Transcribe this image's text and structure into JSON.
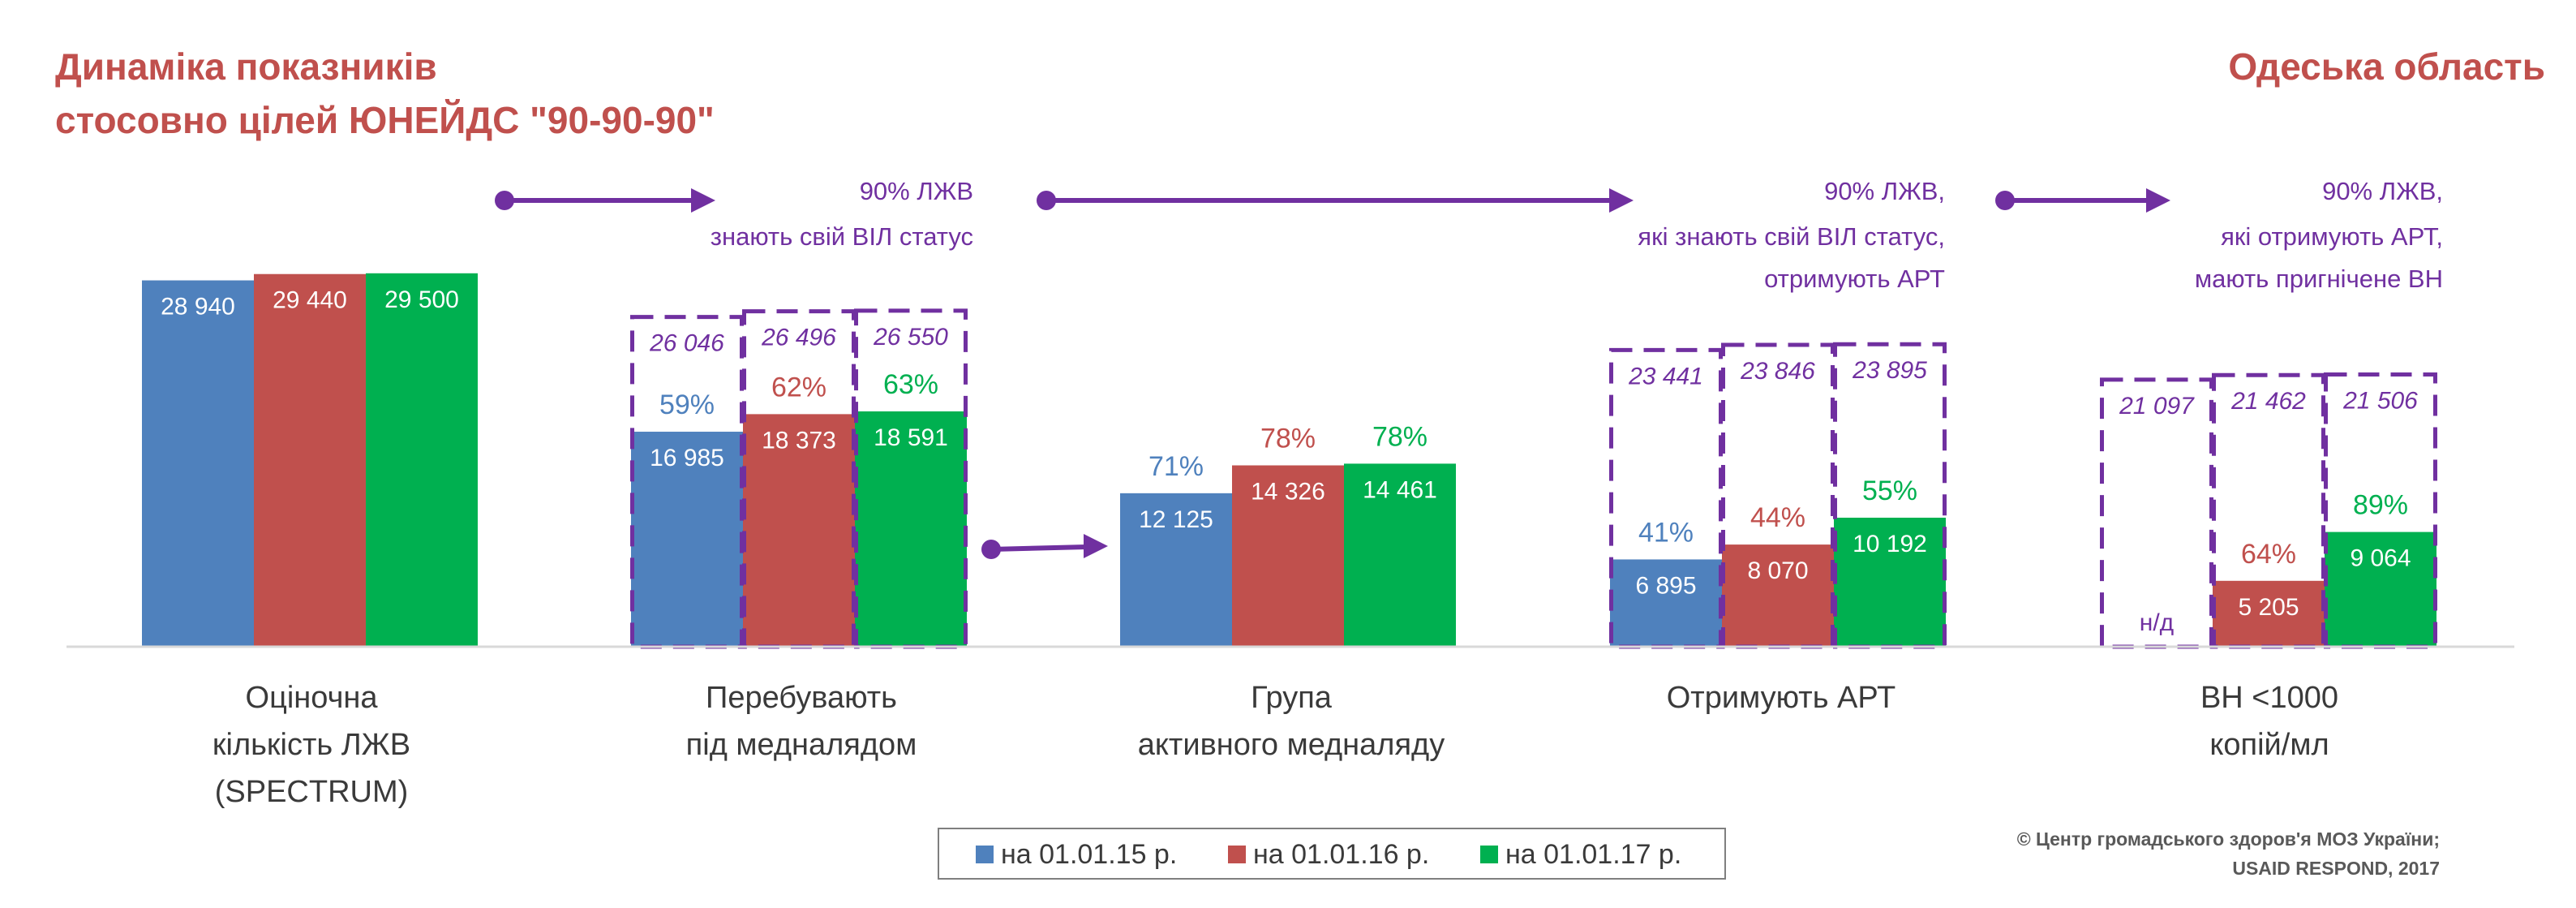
{
  "title_left": [
    "Динаміка показників",
    "стосовно цілей ЮНЕЙДС \"90-90-90\""
  ],
  "title_right": "Одеська область",
  "colors": {
    "series": [
      "#4f81bd",
      "#c0504d",
      "#00b050"
    ],
    "title": "#c0504d",
    "purple": "#7030a0"
  },
  "chart_data": {
    "type": "bar",
    "title": "Динаміка показників стосовно цілей ЮНЕЙДС \"90-90-90\"",
    "region": "Одеська область",
    "ylim": [
      0,
      33000
    ],
    "grid": false,
    "series": [
      {
        "name": "на 01.01.15 р.",
        "values": [
          28940,
          16985,
          12125,
          6895,
          null
        ],
        "value_labels": [
          "28 940",
          "16 985",
          "12 125",
          "6 895",
          "н/д"
        ]
      },
      {
        "name": "на 01.01.16 р.",
        "values": [
          29440,
          18373,
          14326,
          8070,
          5205
        ],
        "value_labels": [
          "29 440",
          "18 373",
          "14 326",
          "8 070",
          "5 205"
        ]
      },
      {
        "name": "на 01.01.17 р.",
        "values": [
          29500,
          18591,
          14461,
          10192,
          9064
        ],
        "value_labels": [
          "29 500",
          "18 591",
          "14 461",
          "10 192",
          "9 064"
        ]
      }
    ],
    "percentages": [
      null,
      [
        "59%",
        "62%",
        "63%"
      ],
      [
        "71%",
        "78%",
        "78%"
      ],
      [
        "41%",
        "44%",
        "55%"
      ],
      [
        null,
        "64%",
        "89%"
      ]
    ],
    "targets": [
      null,
      {
        "values": [
          26046,
          26496,
          26550
        ],
        "labels": [
          "26 046",
          "26 496",
          "26 550"
        ]
      },
      null,
      {
        "values": [
          23441,
          23846,
          23895
        ],
        "labels": [
          "23 441",
          "23 846",
          "23 895"
        ]
      },
      {
        "values": [
          21097,
          21462,
          21506
        ],
        "labels": [
          "21 097",
          "21 462",
          "21 506"
        ]
      }
    ],
    "notes": [
      [
        "90% ЛЖВ",
        "знають свій ВІЛ статус"
      ],
      [
        "90% ЛЖВ,",
        "які знають свій ВІЛ статус,",
        "отримують АРТ"
      ],
      [
        "90% ЛЖВ,",
        "які отримують АРТ,",
        "мають пригнічене ВН"
      ]
    ],
    "categories": [
      [
        "Оціночна",
        "кількість ЛЖВ",
        "(SPECTRUM)"
      ],
      [
        "Перебувають",
        "під медналядом"
      ],
      [
        "Група",
        "активного медналяду"
      ],
      [
        "Отримують АРТ"
      ],
      [
        "ВН <1000",
        "копій/мл"
      ]
    ],
    "legend": [
      "на 01.01.15 р.",
      "на 01.01.16 р.",
      "на 01.01.17 р."
    ]
  },
  "copyright": [
    "© Центр громадського здоров'я МОЗ України;",
    "USAID RESPOND, 2017"
  ]
}
